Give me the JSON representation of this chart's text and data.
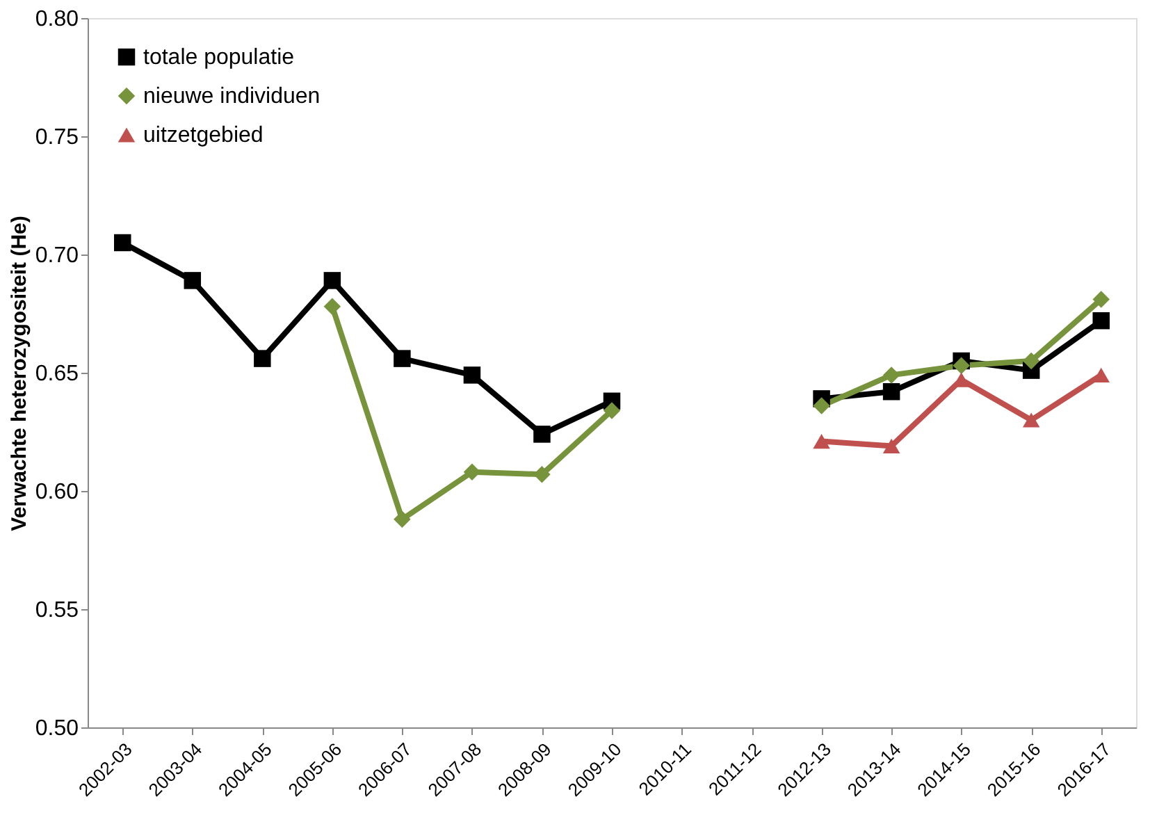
{
  "chart_data": {
    "type": "line",
    "ylabel": "Verwachte heterozygositeit (He)",
    "categories": [
      "2002-03",
      "2003-04",
      "2004-05",
      "2005-06",
      "2006-07",
      "2007-08",
      "2008-09",
      "2009-10",
      "2010-11",
      "2011-12",
      "2012-13",
      "2013-14",
      "2014-15",
      "2015-16",
      "2016-17"
    ],
    "series": [
      {
        "name": "totale populatie",
        "color": "#000000",
        "marker": "square",
        "values": [
          0.705,
          0.689,
          0.656,
          0.689,
          0.656,
          0.649,
          0.624,
          0.638,
          null,
          null,
          0.639,
          0.642,
          0.655,
          0.651,
          0.672
        ]
      },
      {
        "name": "nieuwe individuen",
        "color": "#77933c",
        "marker": "diamond",
        "values": [
          null,
          null,
          null,
          0.678,
          0.588,
          0.608,
          0.607,
          0.634,
          null,
          null,
          0.636,
          0.649,
          0.653,
          0.655,
          0.681
        ]
      },
      {
        "name": "uitzetgebied",
        "color": "#c0504d",
        "marker": "triangle",
        "values": [
          null,
          null,
          null,
          null,
          null,
          null,
          null,
          null,
          null,
          null,
          0.621,
          0.619,
          0.647,
          0.63,
          0.649
        ]
      }
    ],
    "ylim": [
      0.5,
      0.8
    ],
    "yticks": [
      {
        "value": 0.5,
        "label": "0.50"
      },
      {
        "value": 0.55,
        "label": "0.55"
      },
      {
        "value": 0.6,
        "label": "0.60"
      },
      {
        "value": 0.65,
        "label": "0.65"
      },
      {
        "value": 0.7,
        "label": "0.70"
      },
      {
        "value": 0.75,
        "label": "0.75"
      },
      {
        "value": 0.8,
        "label": "0.80"
      }
    ],
    "grid": false,
    "legend": "top left",
    "line_style": "solid"
  }
}
